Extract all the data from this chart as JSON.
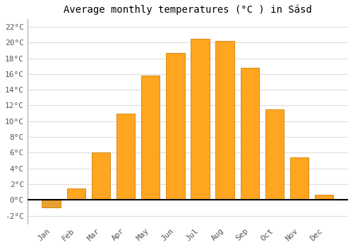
{
  "title": "Average monthly temperatures (°C ) in Sásd",
  "months": [
    "Jan",
    "Feb",
    "Mar",
    "Apr",
    "May",
    "Jun",
    "Jul",
    "Aug",
    "Sep",
    "Oct",
    "Nov",
    "Dec"
  ],
  "temperatures": [
    -1.0,
    1.5,
    6.0,
    11.0,
    15.8,
    18.7,
    20.5,
    20.2,
    16.8,
    11.5,
    5.4,
    0.7
  ],
  "bar_color_positive": "#FFA520",
  "bar_color_negative": "#E8A030",
  "bar_edge_color": "#D08000",
  "plot_bg_color": "#FFFFFF",
  "fig_bg_color": "#FFFFFF",
  "ylim": [
    -3,
    23
  ],
  "yticks": [
    -2,
    0,
    2,
    4,
    6,
    8,
    10,
    12,
    14,
    16,
    18,
    20,
    22
  ],
  "grid_color": "#DDDDDD",
  "title_fontsize": 10,
  "tick_fontsize": 8,
  "font_family": "monospace",
  "bar_width": 0.75
}
